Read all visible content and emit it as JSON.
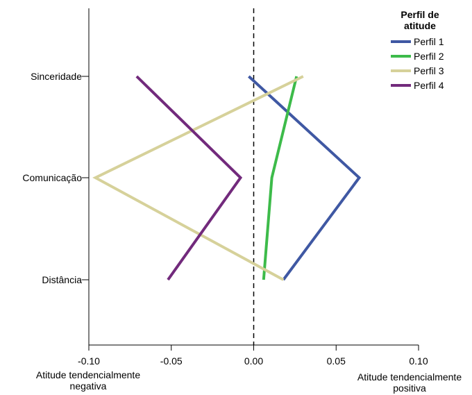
{
  "chart_data": {
    "type": "line",
    "orientation": "horizontal",
    "categories": [
      "Sinceridade",
      "Comunicação",
      "Distância"
    ],
    "xlim": [
      -0.1,
      0.1
    ],
    "x_ticks": [
      "-0.10",
      "-0.05",
      "0.00",
      "0.05",
      "0.10"
    ],
    "reference_line": {
      "x": 0.0,
      "style": "dashed"
    },
    "series": [
      {
        "name": "Perfil 1",
        "color": "#3f58a3",
        "values": [
          -0.003,
          0.064,
          0.018
        ]
      },
      {
        "name": "Perfil 2",
        "color": "#3dbb4a",
        "values": [
          0.026,
          0.011,
          0.006
        ]
      },
      {
        "name": "Perfil 3",
        "color": "#d6d19a",
        "values": [
          0.03,
          -0.096,
          0.018
        ]
      },
      {
        "name": "Perfil 4",
        "color": "#722a7c",
        "values": [
          -0.071,
          -0.008,
          -0.052
        ]
      }
    ],
    "legend": {
      "title_lines": [
        "Perfil de",
        "atitude"
      ],
      "placement": "top-right"
    },
    "annotations": {
      "negative": [
        "Atitude tendencialmente",
        "negativa"
      ],
      "positive": [
        "Atitude tendencialmente",
        "positiva"
      ]
    },
    "grid": false
  }
}
